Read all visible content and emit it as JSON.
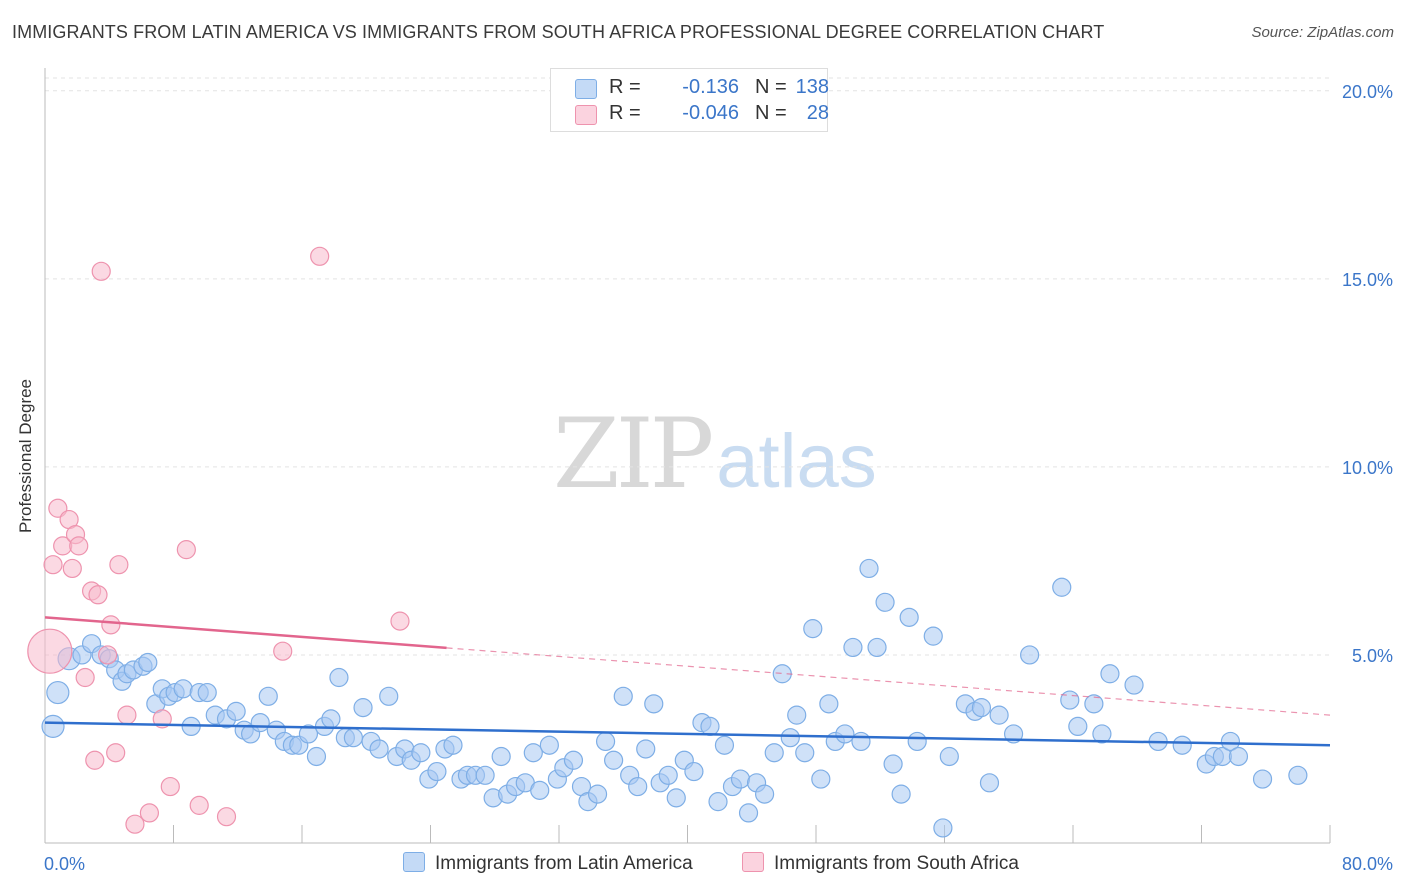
{
  "title": "IMMIGRANTS FROM LATIN AMERICA VS IMMIGRANTS FROM SOUTH AFRICA PROFESSIONAL DEGREE CORRELATION CHART",
  "source": "Source: ZipAtlas.com",
  "watermark": {
    "part1": "ZIP",
    "part2": "atlas"
  },
  "legend": {
    "rows": [
      {
        "r_label": "R =",
        "r_value": "-0.136",
        "n_label": "N =",
        "n_value": "138",
        "color": "#a7c8f2"
      },
      {
        "r_label": "R =",
        "r_value": "-0.046",
        "n_label": "N =",
        "n_value": "28",
        "color": "#f7b9cc"
      }
    ]
  },
  "colors": {
    "blue_fill": "#a7c8f2",
    "blue_stroke": "#7eaee6",
    "blue_line": "#2f6fcd",
    "pink_fill": "#f7b9cc",
    "pink_stroke": "#ee93ae",
    "pink_line": "#e2658d",
    "axis_text": "#3b76c9"
  },
  "chart_data": {
    "type": "scatter",
    "title": "IMMIGRANTS FROM LATIN AMERICA VS IMMIGRANTS FROM SOUTH AFRICA PROFESSIONAL DEGREE CORRELATION CHART",
    "xlabel": "",
    "ylabel": "Professional Degree",
    "xlim": [
      0,
      80
    ],
    "ylim": [
      0,
      20.5
    ],
    "x_tick_labels": [
      "0.0%",
      "80.0%"
    ],
    "y_ticks": [
      5,
      10,
      15,
      20
    ],
    "y_tick_labels": [
      "5.0%",
      "10.0%",
      "15.0%",
      "20.0%"
    ],
    "grid": true,
    "legend_position": "bottom",
    "series": [
      {
        "name": "Immigrants from Latin America",
        "color": "#a7c8f2",
        "trend": {
          "x": [
            0,
            80
          ],
          "y": [
            3.2,
            2.6
          ],
          "dashed_from": null
        },
        "points": [
          [
            0.5,
            3.1
          ],
          [
            0.8,
            4.0
          ],
          [
            1.5,
            4.9
          ],
          [
            2.3,
            5.0
          ],
          [
            2.9,
            5.3
          ],
          [
            3.5,
            5.0
          ],
          [
            4.0,
            4.9
          ],
          [
            4.4,
            4.6
          ],
          [
            4.8,
            4.3
          ],
          [
            5.1,
            4.5
          ],
          [
            5.5,
            4.6
          ],
          [
            6.1,
            4.7
          ],
          [
            6.4,
            4.8
          ],
          [
            6.9,
            3.7
          ],
          [
            7.3,
            4.1
          ],
          [
            7.7,
            3.9
          ],
          [
            8.1,
            4.0
          ],
          [
            8.6,
            4.1
          ],
          [
            9.1,
            3.1
          ],
          [
            9.6,
            4.0
          ],
          [
            10.1,
            4.0
          ],
          [
            10.6,
            3.4
          ],
          [
            11.3,
            3.3
          ],
          [
            11.9,
            3.5
          ],
          [
            12.4,
            3.0
          ],
          [
            12.8,
            2.9
          ],
          [
            13.4,
            3.2
          ],
          [
            13.9,
            3.9
          ],
          [
            14.4,
            3.0
          ],
          [
            14.9,
            2.7
          ],
          [
            15.4,
            2.6
          ],
          [
            15.8,
            2.6
          ],
          [
            16.4,
            2.9
          ],
          [
            16.9,
            2.3
          ],
          [
            17.4,
            3.1
          ],
          [
            17.8,
            3.3
          ],
          [
            18.3,
            4.4
          ],
          [
            18.7,
            2.8
          ],
          [
            19.2,
            2.8
          ],
          [
            19.8,
            3.6
          ],
          [
            20.3,
            2.7
          ],
          [
            20.8,
            2.5
          ],
          [
            21.4,
            3.9
          ],
          [
            21.9,
            2.3
          ],
          [
            22.4,
            2.5
          ],
          [
            22.8,
            2.2
          ],
          [
            23.4,
            2.4
          ],
          [
            23.9,
            1.7
          ],
          [
            24.4,
            1.9
          ],
          [
            24.9,
            2.5
          ],
          [
            25.4,
            2.6
          ],
          [
            25.9,
            1.7
          ],
          [
            26.3,
            1.8
          ],
          [
            26.8,
            1.8
          ],
          [
            27.4,
            1.8
          ],
          [
            27.9,
            1.2
          ],
          [
            28.4,
            2.3
          ],
          [
            28.8,
            1.3
          ],
          [
            29.3,
            1.5
          ],
          [
            29.9,
            1.6
          ],
          [
            30.4,
            2.4
          ],
          [
            30.8,
            1.4
          ],
          [
            31.4,
            2.6
          ],
          [
            31.9,
            1.7
          ],
          [
            32.3,
            2.0
          ],
          [
            32.9,
            2.2
          ],
          [
            33.4,
            1.5
          ],
          [
            33.8,
            1.1
          ],
          [
            34.4,
            1.3
          ],
          [
            34.9,
            2.7
          ],
          [
            35.4,
            2.2
          ],
          [
            36.0,
            3.9
          ],
          [
            36.4,
            1.8
          ],
          [
            36.9,
            1.5
          ],
          [
            37.4,
            2.5
          ],
          [
            37.9,
            3.7
          ],
          [
            38.3,
            1.6
          ],
          [
            38.8,
            1.8
          ],
          [
            39.3,
            1.2
          ],
          [
            39.8,
            2.2
          ],
          [
            40.4,
            1.9
          ],
          [
            40.9,
            3.2
          ],
          [
            41.4,
            3.1
          ],
          [
            41.9,
            1.1
          ],
          [
            42.3,
            2.6
          ],
          [
            42.8,
            1.5
          ],
          [
            43.3,
            1.7
          ],
          [
            43.8,
            0.8
          ],
          [
            44.3,
            1.6
          ],
          [
            44.8,
            1.3
          ],
          [
            45.4,
            2.4
          ],
          [
            45.9,
            4.5
          ],
          [
            46.4,
            2.8
          ],
          [
            46.8,
            3.4
          ],
          [
            47.3,
            2.4
          ],
          [
            47.8,
            5.7
          ],
          [
            48.3,
            1.7
          ],
          [
            48.8,
            3.7
          ],
          [
            49.2,
            2.7
          ],
          [
            49.8,
            2.9
          ],
          [
            50.3,
            5.2
          ],
          [
            50.8,
            2.7
          ],
          [
            51.3,
            7.3
          ],
          [
            51.8,
            5.2
          ],
          [
            52.3,
            6.4
          ],
          [
            52.8,
            2.1
          ],
          [
            53.3,
            1.3
          ],
          [
            53.8,
            6.0
          ],
          [
            54.3,
            2.7
          ],
          [
            55.3,
            5.5
          ],
          [
            55.9,
            0.4
          ],
          [
            56.3,
            2.3
          ],
          [
            57.3,
            3.7
          ],
          [
            57.9,
            3.5
          ],
          [
            58.3,
            3.6
          ],
          [
            58.8,
            1.6
          ],
          [
            59.4,
            3.4
          ],
          [
            60.3,
            2.9
          ],
          [
            61.3,
            5.0
          ],
          [
            63.3,
            6.8
          ],
          [
            63.8,
            3.8
          ],
          [
            64.3,
            3.1
          ],
          [
            65.3,
            3.7
          ],
          [
            65.8,
            2.9
          ],
          [
            66.3,
            4.5
          ],
          [
            67.8,
            4.2
          ],
          [
            69.3,
            2.7
          ],
          [
            70.8,
            2.6
          ],
          [
            72.3,
            2.1
          ],
          [
            72.8,
            2.3
          ],
          [
            73.3,
            2.3
          ],
          [
            73.8,
            2.7
          ],
          [
            74.3,
            2.3
          ],
          [
            75.8,
            1.7
          ],
          [
            78.0,
            1.8
          ]
        ]
      },
      {
        "name": "Immigrants from South Africa",
        "color": "#f7b9cc",
        "trend": {
          "x": [
            0,
            80
          ],
          "y": [
            6.0,
            3.4
          ],
          "dashed_from": 25
        },
        "points": [
          [
            0.3,
            5.1
          ],
          [
            0.5,
            7.4
          ],
          [
            0.8,
            8.9
          ],
          [
            1.1,
            7.9
          ],
          [
            1.5,
            8.6
          ],
          [
            1.7,
            7.3
          ],
          [
            1.9,
            8.2
          ],
          [
            2.1,
            7.9
          ],
          [
            2.5,
            4.4
          ],
          [
            2.9,
            6.7
          ],
          [
            3.1,
            2.2
          ],
          [
            3.3,
            6.6
          ],
          [
            3.5,
            15.2
          ],
          [
            3.9,
            5.0
          ],
          [
            4.1,
            5.8
          ],
          [
            4.4,
            2.4
          ],
          [
            4.6,
            7.4
          ],
          [
            5.1,
            3.4
          ],
          [
            5.6,
            0.5
          ],
          [
            6.5,
            0.8
          ],
          [
            7.3,
            3.3
          ],
          [
            7.8,
            1.5
          ],
          [
            8.8,
            7.8
          ],
          [
            9.6,
            1.0
          ],
          [
            11.3,
            0.7
          ],
          [
            14.8,
            5.1
          ],
          [
            17.1,
            15.6
          ],
          [
            22.1,
            5.9
          ]
        ]
      }
    ]
  },
  "bottom_legend": [
    {
      "label": "Immigrants from Latin America",
      "color": "#a7c8f2"
    },
    {
      "label": "Immigrants from South Africa",
      "color": "#f7b9cc"
    }
  ]
}
